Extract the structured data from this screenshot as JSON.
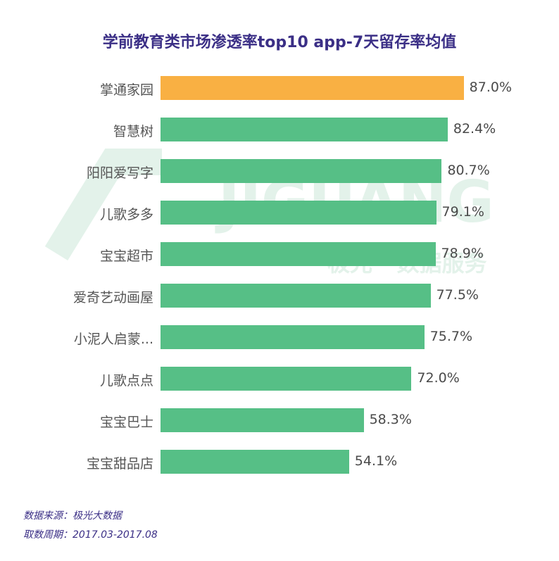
{
  "colors": {
    "title": "#3b2f86",
    "highlight_bar": "#f9b043",
    "normal_bar": "#56bf86",
    "label_text": "#555555",
    "footer_text": "#3b2f86"
  },
  "watermark": {
    "text_1": "JIGUANG",
    "text_2": "极光 · 数据服务"
  },
  "chart_data": {
    "type": "bar",
    "orientation": "horizontal",
    "title": "学前教育类市场渗透率top10 app-7天留存率均值",
    "categories": [
      "掌通家园",
      "智慧树",
      "阳阳爱写字",
      "儿歌多多",
      "宝宝超市",
      "爱奇艺动画屋",
      "小泥人启蒙...",
      "儿歌点点",
      "宝宝巴士",
      "宝宝甜品店"
    ],
    "values": [
      87.0,
      82.4,
      80.7,
      79.1,
      78.9,
      77.5,
      75.7,
      72.0,
      58.3,
      54.1
    ],
    "value_labels": [
      "87.0%",
      "82.4%",
      "80.7%",
      "79.1%",
      "78.9%",
      "77.5%",
      "75.7%",
      "72.0%",
      "58.3%",
      "54.1%"
    ],
    "highlight_index": 0,
    "xlim": [
      0,
      100
    ],
    "grid": false,
    "legend": "none"
  },
  "footer": {
    "source": "数据来源：极光大数据",
    "period": "取数周期：2017.03-2017.08"
  }
}
